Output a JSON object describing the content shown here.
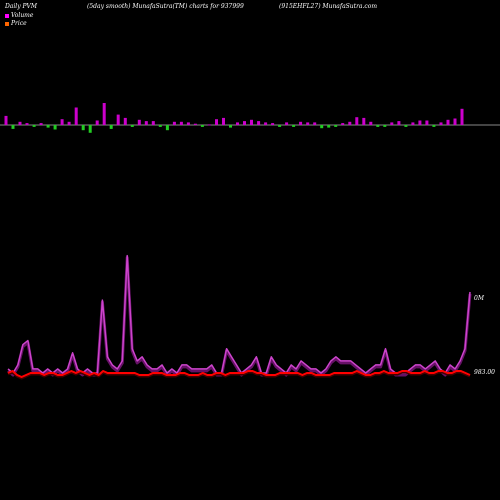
{
  "header": {
    "title": "Daily PVM",
    "smooth": "(5day smooth) MunafaSutra(TM) charts for 937999",
    "symbol": "(915EHFL27) MunafaSutra.com"
  },
  "legend": [
    {
      "label": "Volume",
      "color": "#ff00ff"
    },
    {
      "label": "Price",
      "color": "#ff6600"
    }
  ],
  "colors": {
    "background": "#000000",
    "up": "#cc00cc",
    "down": "#22cc22",
    "axis": "#888888",
    "volume_line": "#cc44cc",
    "price_line": "#ff0000"
  },
  "chart_data": [
    {
      "type": "bar",
      "name": "pvm_bars",
      "note": "positive = magenta, negative = green",
      "values": [
        14,
        -6,
        5,
        3,
        -3,
        3,
        -4,
        -7,
        9,
        5,
        27,
        -8,
        -12,
        7,
        34,
        -6,
        16,
        11,
        -3,
        8,
        6,
        6,
        -3,
        -8,
        5,
        5,
        4,
        2,
        -3,
        1,
        9,
        11,
        -4,
        4,
        6,
        8,
        6,
        4,
        3,
        -3,
        4,
        -3,
        5,
        4,
        4,
        -5,
        -4,
        -3,
        3,
        5,
        12,
        11,
        5,
        -3,
        -3,
        4,
        6,
        -3,
        4,
        7,
        7,
        -3,
        4,
        8,
        10,
        25
      ],
      "ylim": [
        -15,
        40
      ]
    },
    {
      "type": "line",
      "series": [
        {
          "name": "Volume",
          "values": [
            1,
            0,
            2,
            7,
            8,
            1,
            1,
            0,
            1,
            0,
            1,
            0,
            1,
            5,
            1,
            0,
            1,
            0,
            0,
            18,
            4,
            2,
            1,
            3,
            29,
            6,
            3,
            4,
            2,
            1,
            1,
            2,
            0,
            1,
            0,
            2,
            2,
            1,
            1,
            1,
            1,
            2,
            0,
            0,
            6,
            4,
            2,
            0,
            1,
            2,
            4,
            0,
            0,
            4,
            2,
            1,
            0,
            2,
            1,
            3,
            2,
            1,
            1,
            0,
            1,
            3,
            4,
            3,
            3,
            3,
            2,
            1,
            0,
            1,
            2,
            2,
            6,
            1,
            0,
            0,
            0,
            1,
            2,
            2,
            1,
            2,
            3,
            1,
            0,
            2,
            1,
            3,
            6,
            20
          ]
        },
        {
          "name": "Price",
          "values": [
            0,
            1,
            -1,
            -2,
            -1,
            0,
            0,
            0,
            -1,
            0,
            0,
            -1,
            -1,
            0,
            1,
            0,
            1,
            0,
            -1,
            0,
            -1,
            1,
            0,
            0,
            0,
            0,
            0,
            0,
            0,
            -1,
            -1,
            -1,
            0,
            0,
            0,
            -1,
            -1,
            -1,
            0,
            0,
            -1,
            -1,
            -1,
            0,
            -1,
            -1,
            0,
            0,
            -1,
            0,
            0,
            0,
            0,
            1,
            1,
            0,
            0,
            -1,
            -1,
            -1,
            0,
            0,
            0,
            0,
            0,
            -1,
            0,
            0,
            -1,
            -1,
            -1,
            -1,
            0,
            0,
            0,
            0,
            0,
            1,
            0,
            -1,
            -1,
            0,
            0,
            1,
            0,
            0,
            0,
            1,
            1,
            0,
            0,
            0,
            1,
            0,
            0,
            1,
            1,
            0,
            0,
            1,
            1,
            0,
            -1
          ]
        }
      ],
      "labels": {
        "volume_end": "0M",
        "price_end": "983.00"
      }
    }
  ]
}
